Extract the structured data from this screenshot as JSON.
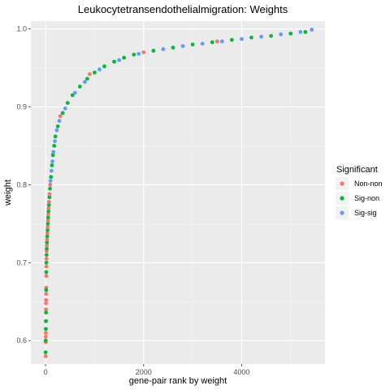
{
  "chart_data": {
    "type": "scatter",
    "title": "Leukocytetransendothelialmigration: Weights",
    "xlabel": "gene-pair rank by weight",
    "ylabel": "weight",
    "xlim": [
      -300,
      5700
    ],
    "ylim": [
      0.57,
      1.01
    ],
    "x_ticks": [
      0,
      2000,
      4000
    ],
    "x_tick_labels": [
      "0",
      "2000",
      "4000"
    ],
    "y_ticks": [
      0.6,
      0.7,
      0.8,
      0.9,
      1.0
    ],
    "y_tick_labels": [
      "0.6",
      "0.7",
      "0.8",
      "0.9",
      "1.0"
    ],
    "grid": true,
    "legend": {
      "title": "Significant",
      "position": "right",
      "entries": [
        {
          "label": "Non-non",
          "color": "#F8766D"
        },
        {
          "label": "Sig-non",
          "color": "#00BA38"
        },
        {
          "label": "Sig-sig",
          "color": "#619CFF"
        }
      ]
    },
    "series": [
      {
        "name": "Non-non",
        "color": "#F8766D",
        "points": [
          [
            2,
            0.58
          ],
          [
            3,
            0.598
          ],
          [
            4,
            0.605
          ],
          [
            5,
            0.61
          ],
          [
            6,
            0.625
          ],
          [
            7,
            0.64
          ],
          [
            8,
            0.648
          ],
          [
            9,
            0.652
          ],
          [
            10,
            0.66
          ],
          [
            11,
            0.668
          ],
          [
            13,
            0.683
          ],
          [
            15,
            0.695
          ],
          [
            18,
            0.705
          ],
          [
            22,
            0.715
          ],
          [
            26,
            0.722
          ],
          [
            30,
            0.73
          ],
          [
            36,
            0.738
          ],
          [
            42,
            0.746
          ],
          [
            48,
            0.754
          ],
          [
            55,
            0.762
          ],
          [
            62,
            0.77
          ],
          [
            70,
            0.778
          ],
          [
            80,
            0.788
          ],
          [
            95,
            0.8
          ],
          [
            300,
            0.888
          ],
          [
            900,
            0.942
          ],
          [
            2000,
            0.97
          ],
          [
            3500,
            0.984
          ],
          [
            5000,
            0.994
          ]
        ]
      },
      {
        "name": "Sig-non",
        "color": "#00BA38",
        "points": [
          [
            1,
            0.585
          ],
          [
            3,
            0.6
          ],
          [
            5,
            0.615
          ],
          [
            7,
            0.625
          ],
          [
            9,
            0.636
          ],
          [
            12,
            0.665
          ],
          [
            14,
            0.688
          ],
          [
            16,
            0.7
          ],
          [
            20,
            0.71
          ],
          [
            24,
            0.718
          ],
          [
            28,
            0.726
          ],
          [
            33,
            0.734
          ],
          [
            40,
            0.742
          ],
          [
            46,
            0.75
          ],
          [
            52,
            0.758
          ],
          [
            60,
            0.766
          ],
          [
            68,
            0.774
          ],
          [
            78,
            0.784
          ],
          [
            90,
            0.795
          ],
          [
            110,
            0.81
          ],
          [
            130,
            0.825
          ],
          [
            150,
            0.838
          ],
          [
            175,
            0.85
          ],
          [
            200,
            0.862
          ],
          [
            250,
            0.875
          ],
          [
            350,
            0.892
          ],
          [
            450,
            0.905
          ],
          [
            550,
            0.915
          ],
          [
            700,
            0.926
          ],
          [
            850,
            0.936
          ],
          [
            1000,
            0.944
          ],
          [
            1200,
            0.952
          ],
          [
            1400,
            0.958
          ],
          [
            1600,
            0.963
          ],
          [
            1800,
            0.967
          ],
          [
            2200,
            0.972
          ],
          [
            2600,
            0.976
          ],
          [
            3000,
            0.98
          ],
          [
            3400,
            0.983
          ],
          [
            3800,
            0.986
          ],
          [
            4200,
            0.989
          ],
          [
            4600,
            0.991
          ],
          [
            5000,
            0.994
          ],
          [
            5300,
            0.996
          ]
        ]
      },
      {
        "name": "Sig-sig",
        "color": "#619CFF",
        "points": [
          [
            100,
            0.805
          ],
          [
            120,
            0.818
          ],
          [
            140,
            0.83
          ],
          [
            160,
            0.842
          ],
          [
            190,
            0.856
          ],
          [
            230,
            0.87
          ],
          [
            280,
            0.882
          ],
          [
            400,
            0.898
          ],
          [
            600,
            0.918
          ],
          [
            800,
            0.932
          ],
          [
            1100,
            0.948
          ],
          [
            1500,
            0.96
          ],
          [
            1900,
            0.968
          ],
          [
            2400,
            0.974
          ],
          [
            2800,
            0.978
          ],
          [
            3200,
            0.981
          ],
          [
            3600,
            0.984
          ],
          [
            4000,
            0.987
          ],
          [
            4400,
            0.99
          ],
          [
            4800,
            0.993
          ],
          [
            5200,
            0.996
          ],
          [
            5430,
            0.999
          ]
        ]
      }
    ]
  }
}
